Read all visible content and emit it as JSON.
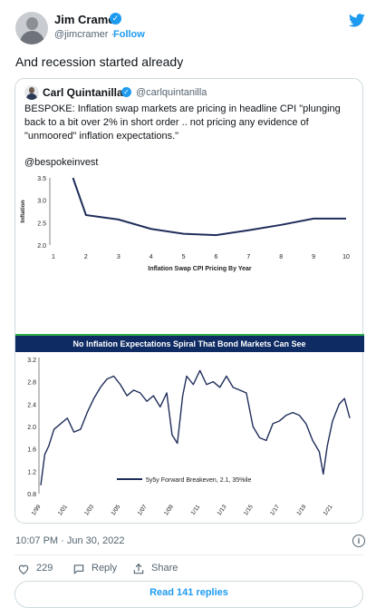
{
  "tweet": {
    "author_name": "Jim Cramer",
    "handle": "@jimcramer",
    "separator": "·",
    "follow_label": "Follow",
    "text": "And recession started already",
    "timestamp": "10:07 PM · Jun 30, 2022",
    "like_count": "229",
    "reply_label": "Reply",
    "share_label": "Share",
    "read_replies_label": "Read 141 replies",
    "info_glyph": "i"
  },
  "quoted": {
    "author_name": "Carl Quintanilla",
    "handle": "@carlquintanilla",
    "text": "BESPOKE: Inflation swap markets are pricing in headline CPI \"plunging back to a bit over 2% in short order .. not pricing any evidence of \"unmoored\" inflation expectations.\"",
    "credit": "@bespokeinvest"
  },
  "colors": {
    "accent": "#1d9bf0",
    "chart_line": "#1f2d5a",
    "banner": "#0e2b63",
    "banner_stripe": "#2fae4a"
  },
  "icons": {
    "like": "heart-icon",
    "reply": "speech-bubble-icon",
    "share": "upload-icon",
    "brand": "twitter-bird-icon"
  },
  "chart_data": [
    {
      "type": "line",
      "title": "",
      "xlabel": "Inflation Swap CPI Pricing By Year",
      "ylabel": "Inflation",
      "x": [
        1.6,
        2,
        3,
        4,
        5,
        6,
        7,
        8,
        9,
        10
      ],
      "values": [
        3.5,
        2.67,
        2.57,
        2.36,
        2.25,
        2.22,
        2.33,
        2.45,
        2.59,
        2.59
      ],
      "xticks": [
        "1",
        "2",
        "3",
        "4",
        "5",
        "6",
        "7",
        "8",
        "9",
        "10"
      ],
      "yticks": [
        "2.0",
        "2.5",
        "3.0",
        "3.5"
      ],
      "xlim": [
        1,
        10
      ],
      "ylim": [
        2.0,
        3.5
      ],
      "grid": false
    },
    {
      "type": "line",
      "title": "No Inflation Expectations Spiral That Bond Markets Can See",
      "xlabel": "",
      "ylabel": "",
      "legend": "5y5y Forward Breakeven, 2.1, 35%ile",
      "legend_position": "bottom-center",
      "xticks": [
        "1/99",
        "1/01",
        "1/03",
        "1/05",
        "1/07",
        "1/09",
        "1/11",
        "1/13",
        "1/15",
        "1/17",
        "1/19",
        "1/21"
      ],
      "yticks": [
        "0.8",
        "1.2",
        "1.6",
        "2.0",
        "2.4",
        "2.8",
        "3.2"
      ],
      "ylim": [
        0.8,
        3.2
      ],
      "xlim": [
        1999.0,
        2022.5
      ],
      "series": [
        {
          "x": [
            1999.0,
            1999.3,
            1999.6,
            2000.0,
            2000.5,
            2001.0,
            2001.5,
            2002.0,
            2002.5,
            2003.0,
            2003.5,
            2004.0,
            2004.5,
            2005.0,
            2005.5,
            2006.0,
            2006.5,
            2007.0,
            2007.5,
            2008.0,
            2008.5,
            2008.9,
            2009.3,
            2009.7,
            2010.0,
            2010.5,
            2011.0,
            2011.5,
            2012.0,
            2012.5,
            2013.0,
            2013.5,
            2014.0,
            2014.5,
            2015.0,
            2015.5,
            2016.0,
            2016.5,
            2017.0,
            2017.5,
            2018.0,
            2018.5,
            2019.0,
            2019.5,
            2020.0,
            2020.3,
            2020.6,
            2021.0,
            2021.5,
            2021.9,
            2022.3
          ],
          "values": [
            0.95,
            1.5,
            1.65,
            1.95,
            2.05,
            2.15,
            1.9,
            1.95,
            2.25,
            2.5,
            2.7,
            2.85,
            2.9,
            2.75,
            2.55,
            2.65,
            2.6,
            2.45,
            2.55,
            2.35,
            2.6,
            1.85,
            1.7,
            2.55,
            2.9,
            2.75,
            3.0,
            2.75,
            2.8,
            2.7,
            2.9,
            2.7,
            2.65,
            2.6,
            2.0,
            1.8,
            1.75,
            2.05,
            2.1,
            2.2,
            2.25,
            2.2,
            2.05,
            1.75,
            1.55,
            1.15,
            1.65,
            2.1,
            2.4,
            2.5,
            2.15
          ]
        }
      ]
    }
  ]
}
